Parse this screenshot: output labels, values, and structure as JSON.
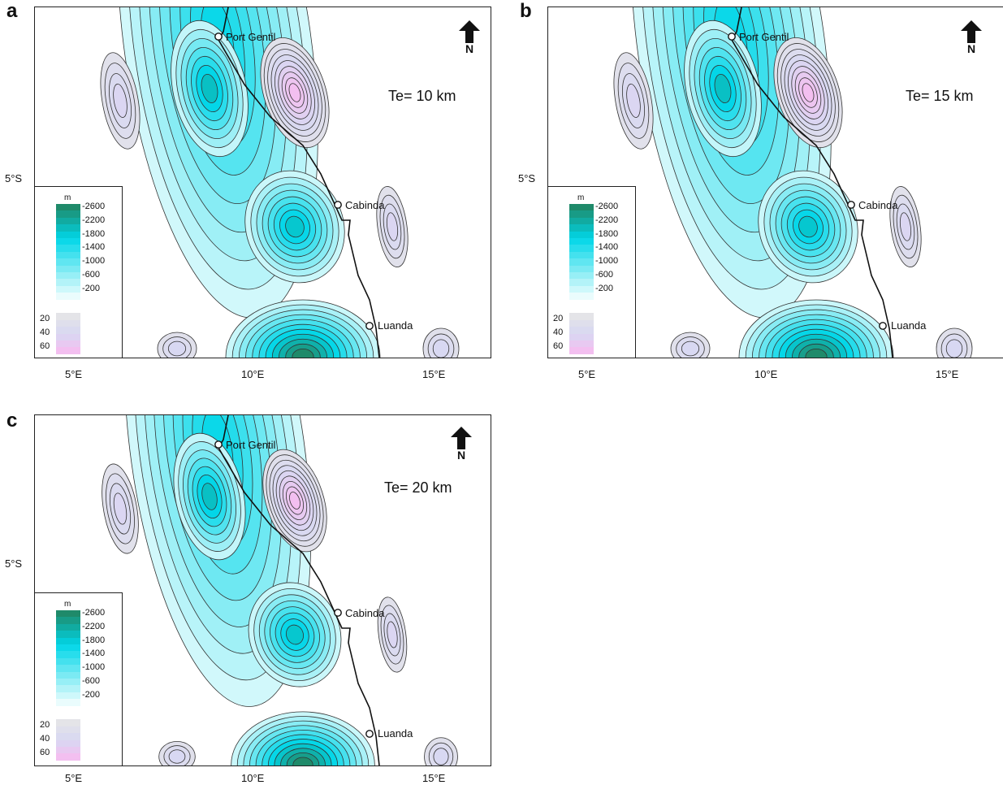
{
  "panels": [
    {
      "letter": "a",
      "te_label": "Te= 10 km"
    },
    {
      "letter": "b",
      "te_label": "Te= 15 km"
    },
    {
      "letter": "c",
      "te_label": "Te= 20 km"
    }
  ],
  "north_label": "N",
  "lat_label": "5°S",
  "lon_labels": [
    "5°E",
    "10°E",
    "15°E"
  ],
  "cities": [
    "Port Gentil",
    "Cabinda",
    "Luanda"
  ],
  "legend": {
    "unit": "m",
    "negative_labels": [
      "-2600",
      "-2200",
      "-1800",
      "-1400",
      "-1000",
      "-600",
      "-200"
    ],
    "positive_labels": [
      "20",
      "40",
      "60"
    ],
    "colors": {
      "deep_negative": "#1f8a6a",
      "mid_negative": "#00d6e8",
      "shallow_negative": "#eafcfd",
      "zero": "#ffffff",
      "low_positive": "#e4e4e8",
      "mid_positive": "#d8d8f2",
      "high_positive": "#f3bff0"
    }
  }
}
